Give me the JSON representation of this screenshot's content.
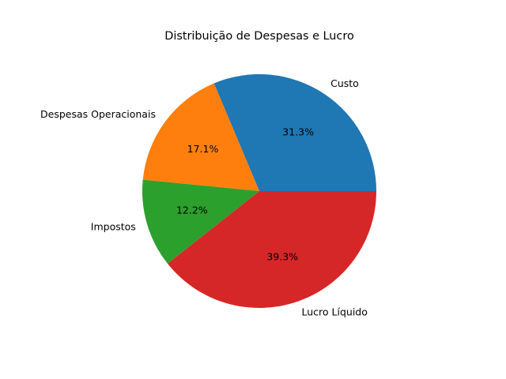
{
  "chart_data": {
    "type": "pie",
    "title": "Distribuição de Despesas e Lucro",
    "start_angle_deg": 0,
    "direction": "counterclockwise",
    "slices": [
      {
        "label": "Custo",
        "value": 31.3,
        "pct_label": "31.3%",
        "color": "#1f77b4"
      },
      {
        "label": "Despesas Operacionais",
        "value": 17.1,
        "pct_label": "17.1%",
        "color": "#ff7f0e"
      },
      {
        "label": "Impostos",
        "value": 12.2,
        "pct_label": "12.2%",
        "color": "#2ca02c"
      },
      {
        "label": "Lucro Líquido",
        "value": 39.3,
        "pct_label": "39.3%",
        "color": "#d62728"
      }
    ]
  }
}
